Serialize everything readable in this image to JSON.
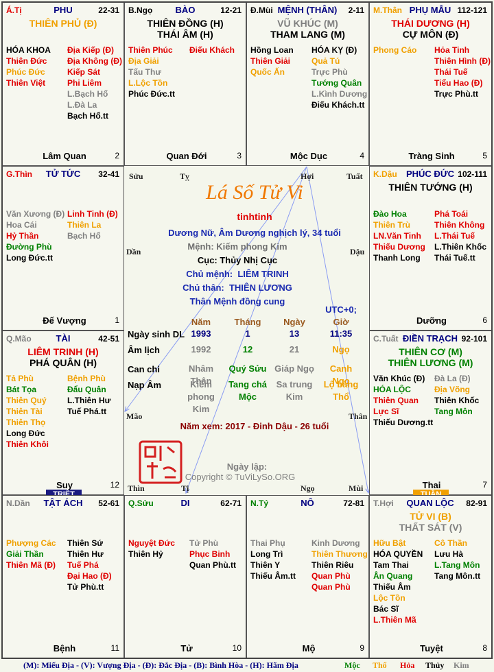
{
  "palaces": [
    {
      "branch": {
        "text": "Á.Tị",
        "color": "#e00000"
      },
      "name": "PHU",
      "ages": "22-31",
      "main": [
        {
          "text": "THIÊN PHỦ (Đ)",
          "color": "#f0a000"
        }
      ],
      "left": [
        {
          "text": "HÓA KHOA",
          "color": "#000000"
        },
        {
          "text": "Thiên Đức",
          "color": "#e00000"
        },
        {
          "text": "Phúc Đức",
          "color": "#f0a000"
        },
        {
          "text": "Thiên Việt",
          "color": "#e00000"
        }
      ],
      "right": [
        {
          "text": "Địa Kiếp (Đ)",
          "color": "#e00000"
        },
        {
          "text": "Địa Không (Đ)",
          "color": "#e00000"
        },
        {
          "text": "Kiếp Sát",
          "color": "#e00000"
        },
        {
          "text": "Phi Liêm",
          "color": "#e00000"
        },
        {
          "text": "L.Bạch Hổ",
          "color": "#808080"
        },
        {
          "text": "L.Đà La",
          "color": "#808080"
        },
        {
          "text": "Bạch Hổ.tt",
          "color": "#000000"
        }
      ],
      "stage": "Lâm Quan",
      "number": 2
    },
    {
      "branch": {
        "text": "B.Ngọ",
        "color": "#000000"
      },
      "name": "BÀO",
      "ages": "12-21",
      "main": [
        {
          "text": "THIÊN ĐỒNG (H)",
          "color": "#000000"
        },
        {
          "text": "THÁI ÂM (H)",
          "color": "#000000"
        }
      ],
      "left": [
        {
          "text": "Thiên Phúc",
          "color": "#e00000"
        },
        {
          "text": "Địa Giải",
          "color": "#f0a000"
        },
        {
          "text": "Tấu Thư",
          "color": "#808080"
        },
        {
          "text": "L.Lộc Tồn",
          "color": "#f0a000"
        },
        {
          "text": "Phúc Đức.tt",
          "color": "#000000"
        }
      ],
      "right": [
        {
          "text": "Điếu Khách",
          "color": "#e00000"
        }
      ],
      "stage": "Quan Đới",
      "number": 3
    },
    {
      "branch": {
        "text": "Đ.Mùi",
        "color": "#000000"
      },
      "name": "MỆNH (THÂN)",
      "ages": "2-11",
      "main": [
        {
          "text": "VŨ KHÚC (M)",
          "color": "#808080"
        },
        {
          "text": "THAM LANG (M)",
          "color": "#000000"
        }
      ],
      "left": [
        {
          "text": "Hồng Loan",
          "color": "#000000"
        },
        {
          "text": "Thiên Giải",
          "color": "#e00000"
        },
        {
          "text": "Quốc Ấn",
          "color": "#f0a000"
        }
      ],
      "right": [
        {
          "text": "HÓA KỴ (Đ)",
          "color": "#000000"
        },
        {
          "text": "Quả Tú",
          "color": "#f0a000"
        },
        {
          "text": "Trực Phù",
          "color": "#808080"
        },
        {
          "text": "Tướng Quân",
          "color": "#008000"
        },
        {
          "text": "L.Kình Dương",
          "color": "#808080"
        },
        {
          "text": "Điếu Khách.tt",
          "color": "#000000"
        }
      ],
      "stage": "Mộc Dục",
      "number": 4
    },
    {
      "branch": {
        "text": "M.Thân",
        "color": "#f0a000"
      },
      "name": "PHỤ MẪU",
      "ages": "112-121",
      "main": [
        {
          "text": "THÁI DƯƠNG (H)",
          "color": "#e00000"
        },
        {
          "text": "CỰ MÔN (Đ)",
          "color": "#000000"
        }
      ],
      "left": [
        {
          "text": "Phong Cáo",
          "color": "#f0a000"
        }
      ],
      "right": [
        {
          "text": "Hỏa Tinh",
          "color": "#e00000"
        },
        {
          "text": "Thiên Hình (Đ)",
          "color": "#e00000"
        },
        {
          "text": "Thái Tuế",
          "color": "#e00000"
        },
        {
          "text": "Tiểu Hao (Đ)",
          "color": "#e00000"
        },
        {
          "text": "Trực Phù.tt",
          "color": "#000000"
        }
      ],
      "stage": "Tràng Sinh",
      "number": 5
    },
    {
      "branch": {
        "text": "G.Thìn",
        "color": "#e00000"
      },
      "name": "TỬ TỨC",
      "ages": "32-41",
      "main": [],
      "left": [
        {
          "text": "Văn Xương (Đ)",
          "color": "#808080"
        },
        {
          "text": "Hoa Cái",
          "color": "#808080"
        },
        {
          "text": "Hỷ Thần",
          "color": "#e00000"
        },
        {
          "text": "Đường Phù",
          "color": "#008000"
        },
        {
          "text": "Long Đức.tt",
          "color": "#000000"
        }
      ],
      "right": [
        {
          "text": "Linh Tinh (Đ)",
          "color": "#e00000"
        },
        {
          "text": "Thiên La",
          "color": "#f0a000"
        },
        {
          "text": "Bạch Hổ",
          "color": "#808080"
        }
      ],
      "stage": "Đế Vượng",
      "number": 1
    },
    {
      "branch": {
        "text": "K.Dậu",
        "color": "#f0a000"
      },
      "name": "PHÚC ĐỨC",
      "ages": "102-111",
      "main": [
        {
          "text": "THIÊN TƯỚNG (H)",
          "color": "#000000"
        }
      ],
      "left": [
        {
          "text": "Đào Hoa",
          "color": "#008000"
        },
        {
          "text": "Thiên Trù",
          "color": "#f0a000"
        },
        {
          "text": "LN.Văn Tinh",
          "color": "#e00000"
        },
        {
          "text": "Thiếu Dương",
          "color": "#e00000"
        },
        {
          "text": "Thanh Long",
          "color": "#000000"
        }
      ],
      "right": [
        {
          "text": "Phá Toái",
          "color": "#e00000"
        },
        {
          "text": "Thiên Không",
          "color": "#e00000"
        },
        {
          "text": "L.Thái Tuế",
          "color": "#e00000"
        },
        {
          "text": "L.Thiên Khốc",
          "color": "#000000"
        },
        {
          "text": "Thái Tuế.tt",
          "color": "#000000"
        }
      ],
      "stage": "Dưỡng",
      "number": 6
    },
    {
      "branch": {
        "text": "Q.Mão",
        "color": "#808080"
      },
      "name": "TÀI",
      "ages": "42-51",
      "main": [
        {
          "text": "LIÊM TRINH (H)",
          "color": "#e00000"
        },
        {
          "text": "PHÁ QUÂN (H)",
          "color": "#000000"
        }
      ],
      "left": [
        {
          "text": "Tả Phù",
          "color": "#f0a000"
        },
        {
          "text": "Bát Tọa",
          "color": "#008000"
        },
        {
          "text": "Thiên Quý",
          "color": "#f0a000"
        },
        {
          "text": "Thiên Tài",
          "color": "#f0a000"
        },
        {
          "text": "Thiên Thọ",
          "color": "#f0a000"
        },
        {
          "text": "Long Đức",
          "color": "#000000"
        },
        {
          "text": "Thiên Khôi",
          "color": "#e00000"
        }
      ],
      "right": [
        {
          "text": "Bệnh Phù",
          "color": "#f0a000"
        },
        {
          "text": "Đẩu Quân",
          "color": "#008000"
        },
        {
          "text": "L.Thiên Hư",
          "color": "#000000"
        },
        {
          "text": "Tuế Phá.tt",
          "color": "#000000"
        }
      ],
      "stage": "Suy",
      "number": 12,
      "tag": {
        "text": "TRIỆT",
        "color": "#1a1a80"
      }
    },
    {
      "branch": {
        "text": "C.Tuất",
        "color": "#808080"
      },
      "name": "ĐIỀN TRẠCH",
      "ages": "92-101",
      "main": [
        {
          "text": "THIÊN CƠ (M)",
          "color": "#008000"
        },
        {
          "text": "THIÊN LƯƠNG (M)",
          "color": "#008000"
        }
      ],
      "left": [
        {
          "text": "Văn Khúc (Đ)",
          "color": "#000000"
        },
        {
          "text": "HÓA LỘC",
          "color": "#008000"
        },
        {
          "text": "Thiên Quan",
          "color": "#e00000"
        },
        {
          "text": "Lực Sĩ",
          "color": "#e00000"
        },
        {
          "text": "Thiếu Dương.tt",
          "color": "#000000"
        }
      ],
      "right": [
        {
          "text": "Đà La (Đ)",
          "color": "#808080"
        },
        {
          "text": "Địa Võng",
          "color": "#f0a000"
        },
        {
          "text": "Thiên Khốc",
          "color": "#000000"
        },
        {
          "text": "Tang Môn",
          "color": "#008000"
        }
      ],
      "stage": "Thai",
      "number": 7,
      "tag": {
        "text": "TUẦN",
        "color": "#f0a000"
      }
    },
    {
      "branch": {
        "text": "N.Dần",
        "color": "#808080"
      },
      "name": "TẬT ÁCH",
      "ages": "52-61",
      "main": [],
      "left": [
        {
          "text": "Phượng Các",
          "color": "#f0a000"
        },
        {
          "text": "Giải Thần",
          "color": "#008000"
        },
        {
          "text": "Thiên Mã (Đ)",
          "color": "#e00000"
        }
      ],
      "right": [
        {
          "text": "Thiên Sứ",
          "color": "#000000"
        },
        {
          "text": "Thiên Hư",
          "color": "#000000"
        },
        {
          "text": "Tuế Phá",
          "color": "#e00000"
        },
        {
          "text": "Đại Hao (Đ)",
          "color": "#e00000"
        },
        {
          "text": "Tử Phù.tt",
          "color": "#000000"
        }
      ],
      "stage": "Bệnh",
      "number": 11
    },
    {
      "branch": {
        "text": "Q.Sửu",
        "color": "#008000"
      },
      "name": "DI",
      "ages": "62-71",
      "main": [],
      "left": [
        {
          "text": "Nguyệt Đức",
          "color": "#e00000"
        },
        {
          "text": "Thiên Hỷ",
          "color": "#000000"
        }
      ],
      "right": [
        {
          "text": "Tử Phù",
          "color": "#808080"
        },
        {
          "text": "Phục Binh",
          "color": "#e00000"
        },
        {
          "text": "Quan Phù.tt",
          "color": "#000000"
        }
      ],
      "stage": "Tử",
      "number": 10
    },
    {
      "branch": {
        "text": "N.Tý",
        "color": "#008000"
      },
      "name": "NÔ",
      "ages": "72-81",
      "main": [],
      "left": [
        {
          "text": "Thai Phụ",
          "color": "#808080"
        },
        {
          "text": "Long Trì",
          "color": "#000000"
        },
        {
          "text": "Thiên Y",
          "color": "#000000"
        },
        {
          "text": "Thiếu Âm.tt",
          "color": "#000000"
        }
      ],
      "right": [
        {
          "text": "Kinh Dương",
          "color": "#808080"
        },
        {
          "text": "Thiên Thương",
          "color": "#f0a000"
        },
        {
          "text": "Thiên Riêu",
          "color": "#000000"
        },
        {
          "text": "Quan Phù",
          "color": "#e00000"
        },
        {
          "text": "Quan Phù",
          "color": "#e00000"
        }
      ],
      "stage": "Mộ",
      "number": 9
    },
    {
      "branch": {
        "text": "T.Hợi",
        "color": "#808080"
      },
      "name": "QUAN LỘC",
      "ages": "82-91",
      "main": [
        {
          "text": "TỬ VI (B)",
          "color": "#f0a000"
        },
        {
          "text": "THẤT SÁT (V)",
          "color": "#808080"
        }
      ],
      "left": [
        {
          "text": "Hữu Bật",
          "color": "#f0a000"
        },
        {
          "text": "HÓA QUYỀN",
          "color": "#000000"
        },
        {
          "text": "Tam Thai",
          "color": "#000000"
        },
        {
          "text": "Ân Quang",
          "color": "#008000"
        },
        {
          "text": "Thiếu Âm",
          "color": "#000000"
        },
        {
          "text": "Lộc Tồn",
          "color": "#f0a000"
        },
        {
          "text": "Bác Sĩ",
          "color": "#000000"
        },
        {
          "text": "L.Thiên Mã",
          "color": "#e00000"
        }
      ],
      "right": [
        {
          "text": "Cô Thần",
          "color": "#f0a000"
        },
        {
          "text": "Lưu Hà",
          "color": "#000000"
        },
        {
          "text": "L.Tang Môn",
          "color": "#008000"
        },
        {
          "text": "Tang Môn.tt",
          "color": "#000000"
        }
      ],
      "stage": "Tuyệt",
      "number": 8
    }
  ],
  "center": {
    "title": "Lá Số Tử Vi",
    "name": "tinhtinh",
    "info": "Dương Nữ, Âm Dương nghịch lý, 34 tuổi",
    "menh": "Mệnh: Kiếm phong Kim",
    "cuc": "Cục: Thủy Nhị Cục",
    "chu_menh": "Chủ mệnh:  LIÊM TRINH",
    "chu_than": "Chủ thân:  THIÊN LƯƠNG",
    "than_menh": "Thân Mệnh đồng cung",
    "timezone": "UTC+0;",
    "table": {
      "headers": [
        "Năm",
        "Tháng",
        "Ngày",
        "Giờ"
      ],
      "rows": [
        {
          "label": "Ngày sinh DL",
          "cells": [
            {
              "text": 1993,
              "color": "#000080"
            },
            {
              "text": 1,
              "color": "#000080"
            },
            {
              "text": 13,
              "color": "#000080"
            },
            {
              "text": "11:35",
              "color": "#000080"
            }
          ]
        },
        {
          "label": "Âm lịch",
          "cells": [
            {
              "text": 1992,
              "color": "#808080"
            },
            {
              "text": 12,
              "color": "#008000"
            },
            {
              "text": 21,
              "color": "#808080"
            },
            {
              "text": "Ngọ",
              "color": "#f0a000"
            }
          ]
        },
        {
          "label": "Can chi",
          "cells": [
            {
              "text": "Nhâm Thân",
              "color": "#808080"
            },
            {
              "text": "Quý Sửu",
              "color": "#008000"
            },
            {
              "text": "Giáp Ngọ",
              "color": "#808080"
            },
            {
              "text": "Canh Ngọ",
              "color": "#f0a000"
            }
          ]
        },
        {
          "label": "Nạp Âm",
          "cells": [
            {
              "text": "Kiếm phong Kim",
              "color": "#808080"
            },
            {
              "text": "Tang chá Mộc",
              "color": "#008000"
            },
            {
              "text": "Sa trung Kim",
              "color": "#808080"
            },
            {
              "text": "Lộ bàng Thổ",
              "color": "#f0a000"
            }
          ]
        }
      ]
    },
    "year_view": "Năm xem: 2017 - Đinh Dậu - 26 tuổi",
    "created": "Ngày lập:",
    "copyright": "Copyright © TuViLySo.ORG",
    "branches": [
      "Sửu",
      "Tỵ",
      "Hợi",
      "Tuất",
      "Dần",
      "Dậu",
      "Mão",
      "Thân",
      "Thìn",
      "Tị",
      "Ngọ",
      "Mùi"
    ]
  },
  "legend": {
    "text": "(M): Miếu Địa - (V): Vượng Địa - (Đ): Đắc Địa - (B): Bình Hòa - (H): Hãm Địa",
    "elements": [
      {
        "text": "Mộc",
        "color": "#008000"
      },
      {
        "text": "Thổ",
        "color": "#f0a000"
      },
      {
        "text": "Hỏa",
        "color": "#e00000"
      },
      {
        "text": "Thủy",
        "color": "#000000"
      },
      {
        "text": "Kim",
        "color": "#808080"
      }
    ]
  }
}
